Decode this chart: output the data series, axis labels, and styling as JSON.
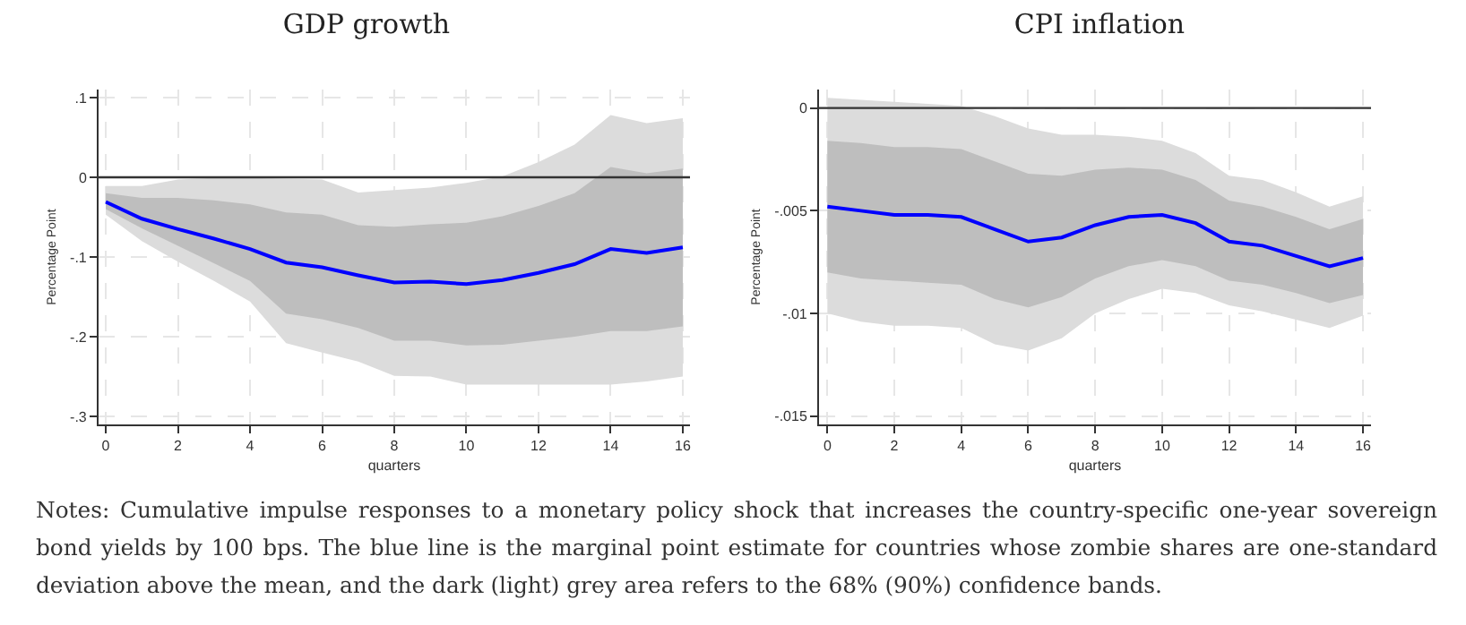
{
  "chart_data": [
    {
      "type": "line",
      "title": "GDP growth",
      "xlabel": "quarters",
      "ylabel": "Percentage Point",
      "x": [
        0,
        1,
        2,
        3,
        4,
        5,
        6,
        7,
        8,
        9,
        10,
        11,
        12,
        13,
        14,
        15,
        16
      ],
      "series": [
        {
          "color": "#dcdcdc",
          "values": [
            null,
            null,
            null,
            null,
            null,
            null,
            null,
            null,
            null,
            null,
            null,
            null,
            null,
            null,
            null,
            null,
            null
          ],
          "lower": [
            -0.047,
            -0.08,
            -0.106,
            -0.13,
            -0.156,
            -0.208,
            -0.22,
            -0.231,
            -0.249,
            -0.25,
            -0.26,
            -0.26,
            -0.26,
            -0.26,
            -0.26,
            -0.256,
            -0.25
          ],
          "upper": [
            -0.011,
            -0.011,
            -0.003,
            -0.001,
            -0.001,
            -0.002,
            -0.003,
            -0.019,
            -0.016,
            -0.013,
            -0.007,
            0.001,
            0.019,
            0.041,
            0.078,
            0.068,
            0.074
          ]
        },
        {
          "color": "#bebebe",
          "values": [
            null,
            null,
            null,
            null,
            null,
            null,
            null,
            null,
            null,
            null,
            null,
            null,
            null,
            null,
            null,
            null,
            null
          ],
          "lower": [
            -0.04,
            -0.064,
            -0.086,
            -0.108,
            -0.13,
            -0.171,
            -0.178,
            -0.189,
            -0.205,
            -0.205,
            -0.211,
            -0.21,
            -0.205,
            -0.2,
            -0.193,
            -0.193,
            -0.187
          ],
          "upper": [
            -0.02,
            -0.026,
            -0.026,
            -0.029,
            -0.034,
            -0.044,
            -0.047,
            -0.06,
            -0.062,
            -0.059,
            -0.057,
            -0.049,
            -0.036,
            -0.02,
            0.013,
            0.005,
            0.011
          ]
        },
        {
          "type": "line",
          "color": "#0000ff",
          "values": [
            -0.031,
            -0.052,
            -0.065,
            -0.077,
            -0.09,
            -0.107,
            -0.113,
            -0.123,
            -0.132,
            -0.131,
            -0.134,
            -0.129,
            -0.12,
            -0.109,
            -0.09,
            -0.095,
            -0.088
          ]
        }
      ],
      "xlim": [
        -0.2,
        16.2
      ],
      "xticks": [
        0,
        2,
        4,
        6,
        8,
        10,
        12,
        14,
        16
      ],
      "ylim": [
        -0.31,
        0.11
      ],
      "yticks": [
        {
          "value": -0.3,
          "label": "-.3"
        },
        {
          "value": -0.2,
          "label": "-.2"
        },
        {
          "value": -0.1,
          "label": "-.1"
        },
        0,
        {
          "value": 0.1,
          "label": ".1"
        }
      ],
      "ref_lines": [
        {
          "axis": "y",
          "value": 0,
          "color": "#333333"
        }
      ],
      "grid": true,
      "annotations": [
        "Notes: Cumulative impulse responses to a monetary policy shock that increases the country-specific one-year sovereign bond yields by 100 bps. The blue line is the marginal point estimate for countries whose zombie shares are one-standard deviation above the mean, and the dark (light) grey area refers to the 68% (90%) confidence bands."
      ]
    },
    {
      "type": "line",
      "title": "CPI inflation",
      "xlabel": "quarters",
      "ylabel": "Percentage Point",
      "x": [
        0,
        1,
        2,
        3,
        4,
        5,
        6,
        7,
        8,
        9,
        10,
        11,
        12,
        13,
        14,
        15,
        16
      ],
      "series": [
        {
          "color": "#dcdcdc",
          "values": [
            null,
            null,
            null,
            null,
            null,
            null,
            null,
            null,
            null,
            null,
            null,
            null,
            null,
            null,
            null,
            null,
            null
          ],
          "lower": [
            -0.01,
            -0.0104,
            -0.0106,
            -0.0106,
            -0.0107,
            -0.0115,
            -0.0118,
            -0.0112,
            -0.01,
            -0.0093,
            -0.0088,
            -0.009,
            -0.0096,
            -0.0099,
            -0.0103,
            -0.0107,
            -0.0101
          ],
          "upper": [
            0.0005,
            0.0004,
            0.0003,
            0.0002,
            0.0001,
            -0.0004,
            -0.001,
            -0.0013,
            -0.0013,
            -0.0014,
            -0.0016,
            -0.0022,
            -0.0033,
            -0.0035,
            -0.0041,
            -0.0048,
            -0.0043
          ]
        },
        {
          "color": "#bebebe",
          "values": [
            null,
            null,
            null,
            null,
            null,
            null,
            null,
            null,
            null,
            null,
            null,
            null,
            null,
            null,
            null,
            null,
            null
          ],
          "lower": [
            -0.008,
            -0.0083,
            -0.0084,
            -0.0085,
            -0.0086,
            -0.0093,
            -0.0097,
            -0.0092,
            -0.0083,
            -0.0077,
            -0.0074,
            -0.0077,
            -0.0084,
            -0.0086,
            -0.009,
            -0.0095,
            -0.0091
          ],
          "upper": [
            -0.0016,
            -0.0017,
            -0.0019,
            -0.0019,
            -0.002,
            -0.0026,
            -0.0032,
            -0.0033,
            -0.003,
            -0.0029,
            -0.003,
            -0.0035,
            -0.0045,
            -0.0048,
            -0.0053,
            -0.0059,
            -0.0054
          ]
        },
        {
          "type": "line",
          "color": "#0000ff",
          "values": [
            -0.0048,
            -0.005,
            -0.0052,
            -0.0052,
            -0.0053,
            -0.0059,
            -0.0065,
            -0.0063,
            -0.0057,
            -0.0053,
            -0.0052,
            -0.0056,
            -0.0065,
            -0.0067,
            -0.0072,
            -0.0077,
            -0.0073
          ]
        }
      ],
      "xlim": [
        -0.25,
        16.24
      ],
      "xticks": [
        0,
        2,
        4,
        6,
        8,
        10,
        12,
        14,
        16
      ],
      "ylim": [
        -0.0154,
        0.0009
      ],
      "yticks": [
        {
          "value": -0.015,
          "label": "-.015"
        },
        {
          "value": -0.01,
          "label": "-.01"
        },
        {
          "value": -0.005,
          "label": "-.005"
        },
        0
      ],
      "ref_lines": [
        {
          "axis": "y",
          "value": 0,
          "color": "#333333"
        }
      ],
      "grid": true
    }
  ]
}
